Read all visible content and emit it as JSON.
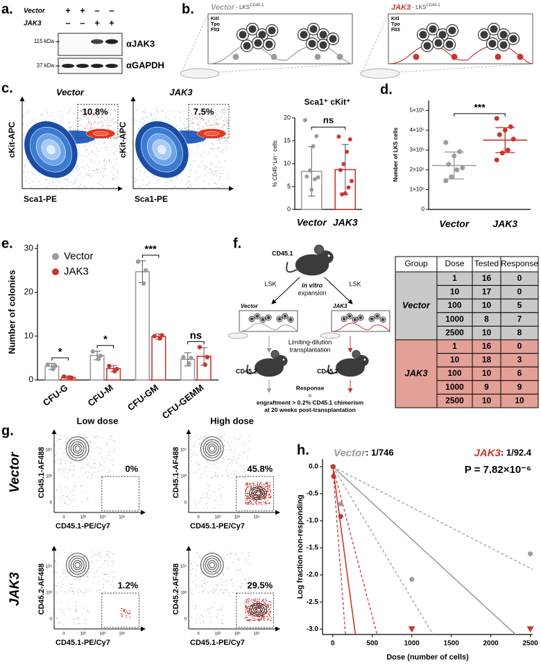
{
  "panel_a": {
    "label": "a.",
    "rows": [
      {
        "name": "Vector",
        "signs": [
          "+",
          "+",
          "–",
          "–"
        ]
      },
      {
        "name": "JAK3",
        "signs": [
          "–",
          "–",
          "+",
          "+"
        ]
      }
    ],
    "blots": [
      {
        "marker": "115 kDa",
        "antibody": "αJAK3"
      },
      {
        "marker": "37 kDa",
        "antibody": "αGAPDH"
      }
    ]
  },
  "panel_b": {
    "label": "b.",
    "cultures": [
      {
        "name": "Vector",
        "suffix": " - LKS",
        "superscript": "CD45.1",
        "color": "#9b9b9b"
      },
      {
        "name": "JAK3",
        "suffix": " - LKS",
        "superscript": "CD45.1",
        "color": "#c8372d"
      }
    ],
    "cytokines": [
      "Kitl",
      "Tpo",
      "Flt3"
    ]
  },
  "panel_c": {
    "label": "c.",
    "flow": {
      "plots": [
        {
          "title": "Vector",
          "gate": "10.8%"
        },
        {
          "title": "JAK3",
          "gate": "7.5%"
        }
      ],
      "ylabel": "cKit-APC",
      "xlabel": "Sca1-PE"
    },
    "chart": {
      "type": "bar",
      "title": "Sca1⁺ cKit⁺",
      "ylabel": "% CD45⁺Lin⁻ cells",
      "categories": [
        "Vector",
        "JAK3"
      ],
      "colors": [
        "#9b9b9b",
        "#c8372d"
      ],
      "values": [
        8.3,
        8.7
      ],
      "errors": [
        5.4,
        5.5
      ],
      "points": [
        [
          19.5,
          16,
          13.8,
          8.5,
          7.2,
          7,
          6.6,
          4.3
        ],
        [
          15.9,
          15.3,
          12.6,
          9.9,
          8.6,
          6.2,
          4.8,
          3.5,
          3.3
        ]
      ],
      "ylim": [
        0,
        20
      ],
      "yticks": [
        0,
        5,
        10,
        15,
        20
      ],
      "significance": "ns"
    }
  },
  "panel_d": {
    "label": "d.",
    "chart": {
      "type": "strip",
      "ylabel": "Number of LKS cells",
      "categories": [
        "Vector",
        "JAK3"
      ],
      "colors": [
        "#9b9b9b",
        "#c8372d"
      ],
      "values": [
        222000,
        350000
      ],
      "errors": [
        68000,
        63000
      ],
      "points": [
        [
          338000,
          292000,
          270000,
          228000,
          210000,
          200000,
          165000,
          145000
        ],
        [
          460000,
          418000,
          400000,
          378000,
          355000,
          300000,
          285000,
          250000
        ]
      ],
      "ylim": [
        0,
        550000
      ],
      "yticks": [
        0,
        {
          "value": 100000,
          "label": "1×10⁵"
        },
        {
          "value": 200000,
          "label": "2×10⁵"
        },
        {
          "value": 300000,
          "label": "3×10⁵"
        },
        {
          "value": 400000,
          "label": "4×10⁵"
        },
        {
          "value": 500000,
          "label": "5×10⁵"
        }
      ],
      "significance": "***"
    }
  },
  "panel_e": {
    "label": "e.",
    "chart": {
      "type": "bar",
      "ylabel": "Number of colonies",
      "categories": [
        "CFU-G",
        "CFU-M",
        "CFU-GM",
        "CFU-GEMM"
      ],
      "series": [
        {
          "name": "Vector",
          "color": "#9b9b9b",
          "values": [
            3.1,
            5.6,
            24.7,
            4.7
          ],
          "errors": [
            0.7,
            1.0,
            2.5,
            1.5
          ],
          "points": [
            [
              3.5,
              3.2,
              2.5
            ],
            [
              6.5,
              5.5,
              4.8
            ],
            [
              27,
              25,
              22
            ],
            [
              5.2,
              5,
              3.8
            ]
          ]
        },
        {
          "name": "JAK3",
          "color": "#c8372d",
          "values": [
            0.6,
            2.6,
            9.9,
            5.4
          ],
          "errors": [
            0.3,
            0.7,
            0.6,
            2.0
          ],
          "points": [
            [
              0.8,
              0.5,
              0.6
            ],
            [
              3.2,
              2.5,
              2.0
            ],
            [
              10,
              10.2,
              9.5
            ],
            [
              7.5,
              5.2,
              3.5
            ]
          ]
        }
      ],
      "ylim": [
        0,
        31
      ],
      "yticks": [
        0,
        10,
        20,
        30
      ],
      "legend": "top-left",
      "significance": [
        "*",
        "*",
        "***",
        "ns"
      ]
    }
  },
  "panel_f": {
    "label": "f.",
    "donor": "CD45.1",
    "sorted": [
      "LSK",
      "LSK"
    ],
    "expansion_note": [
      "in vitro",
      "expansion"
    ],
    "cultures": [
      {
        "name": "Vector",
        "color": "#9b9b9b"
      },
      {
        "name": "JAK3",
        "color": "#c8372d"
      }
    ],
    "transplant_note": [
      "Limiting-dilution",
      "transplantation"
    ],
    "recipients": [
      "CD45.2",
      "CD45.2"
    ],
    "response_note": [
      "Response",
      "=",
      "engraftment > 0.2% CD45.1 chimerism",
      "at 20 weeks post-transplantation"
    ],
    "table": {
      "header": [
        "Group",
        "Dose",
        "Tested",
        "Response"
      ],
      "groups": [
        {
          "name": "Vector",
          "color": "#c9c9c9",
          "rows": [
            [
              1,
              16,
              0
            ],
            [
              10,
              17,
              0
            ],
            [
              100,
              10,
              5
            ],
            [
              1000,
              8,
              7
            ],
            [
              2500,
              10,
              8
            ]
          ]
        },
        {
          "name": "JAK3",
          "color": "#e3a097",
          "rows": [
            [
              1,
              16,
              0
            ],
            [
              10,
              18,
              3
            ],
            [
              100,
              10,
              6
            ],
            [
              1000,
              9,
              9
            ],
            [
              2500,
              10,
              10
            ]
          ]
        }
      ]
    }
  },
  "panel_g": {
    "label": "g.",
    "columns": [
      "Low dose",
      "High dose"
    ],
    "rows": [
      {
        "name": "Vector",
        "color": "#9b9b9b",
        "ylabel": "CD45.1-AF488",
        "gates": [
          "0%",
          "45.8%"
        ]
      },
      {
        "name": "JAK3",
        "color": "#c8372d",
        "ylabel": "CD45.2-AF488",
        "gates": [
          "1.2%",
          "29.5%"
        ]
      }
    ],
    "xlabel": "CD45.1-PE/Cy7",
    "flow_ticks": {
      "x": [
        "0",
        "10²",
        "10³",
        "10⁴"
      ],
      "y": [
        "0",
        "10³",
        "10⁴"
      ]
    }
  },
  "panel_h": {
    "label": "h.",
    "chart": {
      "type": "line",
      "xlabel": "Dose (number of cells)",
      "ylabel": "Log fraction non-responding",
      "colors": {
        "Vector": "#9b9b9b",
        "JAK3": "#c8372d"
      },
      "estimates": [
        {
          "name": "Vector",
          "estimate": ": 1/746"
        },
        {
          "name": "JAK3",
          "estimate": ": 1/92.4"
        }
      ],
      "pvalue": "P = 7.82×10⁻⁶",
      "lines": [
        {
          "series": "Vector",
          "style": "solid",
          "x": [
            0,
            2313
          ],
          "y": [
            0,
            -3.1
          ]
        },
        {
          "series": "Vector",
          "style": "dashed",
          "x": [
            0,
            2530
          ],
          "y": [
            0,
            -1.9
          ]
        },
        {
          "series": "Vector",
          "style": "dashed",
          "x": [
            0,
            1270
          ],
          "y": [
            0,
            -3.1
          ]
        },
        {
          "series": "JAK3",
          "style": "solid",
          "x": [
            0,
            286
          ],
          "y": [
            0,
            -3.1
          ]
        },
        {
          "series": "JAK3",
          "style": "dashed",
          "x": [
            0,
            560
          ],
          "y": [
            0,
            -3.1
          ]
        },
        {
          "series": "JAK3",
          "style": "dashed",
          "x": [
            0,
            160
          ],
          "y": [
            0,
            -3.1
          ]
        }
      ],
      "points": [
        {
          "series": "Vector",
          "marker": "circle",
          "x": [
            1,
            10,
            100,
            1000,
            2500
          ],
          "y": [
            0,
            0,
            -0.69,
            -2.08,
            -1.61
          ]
        },
        {
          "series": "JAK3",
          "marker": "circle",
          "x": [
            1,
            10,
            100
          ],
          "y": [
            0,
            -0.18,
            -0.92
          ]
        },
        {
          "series": "JAK3",
          "marker": "triangle",
          "x": [
            1000,
            2500
          ],
          "y": [
            -3,
            -3
          ]
        }
      ],
      "xlim": [
        -130,
        2530
      ],
      "ylim": [
        -3.1,
        0.14
      ],
      "xticks": [
        0,
        500,
        1000,
        1500,
        2000,
        2500
      ],
      "yticks": [
        {
          "value": 0,
          "label": "0.0"
        },
        -0.5,
        {
          "value": -1,
          "label": "-1.0"
        },
        -1.5,
        {
          "value": -2,
          "label": "-2.0"
        },
        -2.5,
        {
          "value": -3,
          "label": "-3.0"
        }
      ]
    }
  }
}
